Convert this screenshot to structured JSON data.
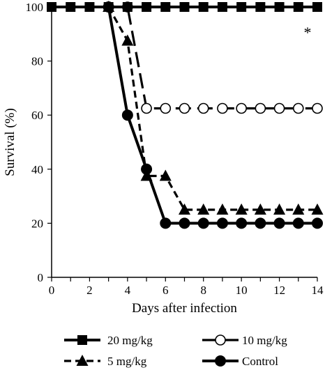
{
  "chart_data": {
    "type": "line",
    "xlabel": "Days after infection",
    "ylabel": "Survival (%)",
    "xlim": [
      0,
      14
    ],
    "ylim": [
      0,
      100
    ],
    "xticks": [
      "0",
      "2",
      "4",
      "6",
      "8",
      "10",
      "12",
      "14"
    ],
    "yticks": [
      "0",
      "20",
      "40",
      "60",
      "80",
      "100"
    ],
    "grid": false,
    "legend_position": "bottom",
    "annotation": "*",
    "series": [
      {
        "name": "20 mg/kg",
        "marker": "square-filled",
        "line": "solid",
        "x": [
          0,
          1,
          2,
          3,
          4,
          5,
          6,
          7,
          8,
          9,
          10,
          11,
          12,
          13,
          14
        ],
        "y": [
          100,
          100,
          100,
          100,
          100,
          100,
          100,
          100,
          100,
          100,
          100,
          100,
          100,
          100,
          100
        ]
      },
      {
        "name": "10 mg/kg",
        "marker": "circle-open",
        "line": "long-dash",
        "x": [
          3,
          4,
          5,
          6,
          7,
          8,
          9,
          10,
          11,
          12,
          13,
          14
        ],
        "y": [
          100,
          100,
          62.5,
          62.5,
          62.5,
          62.5,
          62.5,
          62.5,
          62.5,
          62.5,
          62.5,
          62.5
        ]
      },
      {
        "name": "5 mg/kg",
        "marker": "triangle-filled",
        "line": "short-dash",
        "x": [
          3,
          4,
          5,
          6,
          7,
          8,
          9,
          10,
          11,
          12,
          13,
          14
        ],
        "y": [
          100,
          87.5,
          37.5,
          37.5,
          25,
          25,
          25,
          25,
          25,
          25,
          25,
          25
        ]
      },
      {
        "name": "Control",
        "marker": "circle-filled",
        "line": "solid",
        "x": [
          3,
          4,
          5,
          6,
          7,
          8,
          9,
          10,
          11,
          12,
          13,
          14
        ],
        "y": [
          100,
          60,
          40,
          20,
          20,
          20,
          20,
          20,
          20,
          20,
          20,
          20
        ]
      }
    ]
  }
}
